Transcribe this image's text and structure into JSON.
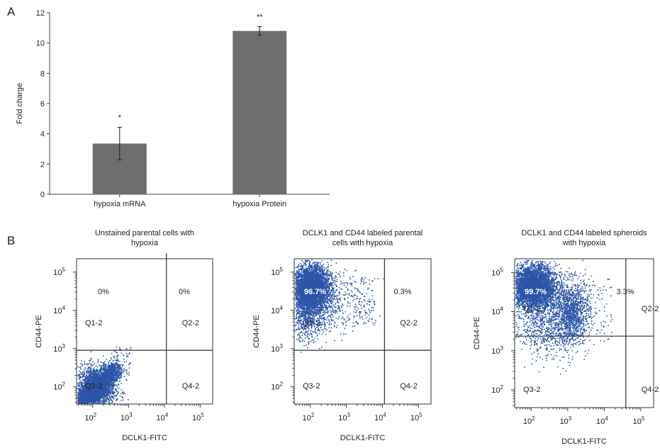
{
  "panel_a": {
    "letter": "A",
    "chart_data": {
      "type": "bar",
      "categories": [
        "hypoxia mRNA",
        "hypoxia Protein"
      ],
      "values": [
        3.35,
        10.8
      ],
      "errors": [
        1.08,
        0.28
      ],
      "significance": [
        "*",
        "**"
      ],
      "ylabel": "Fold charge",
      "ylim": [
        0,
        12
      ],
      "yticks": [
        "0",
        "2",
        "4",
        "6",
        "8",
        "10",
        "12"
      ],
      "bar_color": "#6e6e6e"
    }
  },
  "panel_b": {
    "letter": "B",
    "chart_data": [
      {
        "type": "scatter",
        "title_lines": [
          "Unstained parental cells with",
          "hypoxia"
        ],
        "xlabel": "DCLK1-FITC",
        "ylabel": "CD44-PE",
        "axis_scale": "log",
        "x_tick_exps": [
          "2",
          "3",
          "4",
          "5"
        ],
        "y_tick_exps": [
          "2",
          "3",
          "4",
          "5"
        ],
        "quadrant_labels": [
          "Q1-2",
          "Q2-2",
          "Q3-2",
          "Q4-2"
        ],
        "quadrant_percentages": {
          "Q1-2": "0%",
          "Q2-2": "0%"
        },
        "gate": {
          "x": 660,
          "y": 630
        },
        "point_color": "#2c55a8",
        "description": "dense population in lower-left (Q3-2)"
      },
      {
        "type": "scatter",
        "title_lines": [
          "DCLK1 and CD44 labeled parental",
          "cells with hypoxia"
        ],
        "xlabel": "DCLK1-FITC",
        "ylabel": "CD44-PE",
        "axis_scale": "log",
        "x_tick_exps": [
          "2",
          "3",
          "4",
          "5"
        ],
        "y_tick_exps": [
          "2",
          "3",
          "4",
          "5"
        ],
        "quadrant_labels": [
          "Q1-2",
          "Q2-2",
          "Q3-2",
          "Q4-2"
        ],
        "quadrant_percentages": {
          "Q1-2": "96.7%",
          "Q2-2": "0.3%"
        },
        "gate": {
          "x": 660,
          "y": 630
        },
        "point_color": "#2c55a8"
      },
      {
        "type": "scatter",
        "title_lines": [
          "DCLK1 and CD44 labeled spheroids",
          "with hypoxia"
        ],
        "xlabel": "DCLK1-FITC",
        "ylabel": "CD44-PE",
        "axis_scale": "log",
        "x_tick_exps": [
          "2",
          "3",
          "4",
          "5"
        ],
        "y_tick_exps": [
          "2",
          "3",
          "4",
          "5"
        ],
        "quadrant_labels": [
          "Q1-2",
          "Q2-2",
          "Q3-2",
          "Q4-2"
        ],
        "quadrant_percentages": {
          "Q1-2": "99.7%",
          "Q2-2": "3.3%"
        },
        "gate": {
          "x": 800,
          "y": 520
        },
        "point_color": "#2c55a8"
      }
    ]
  }
}
